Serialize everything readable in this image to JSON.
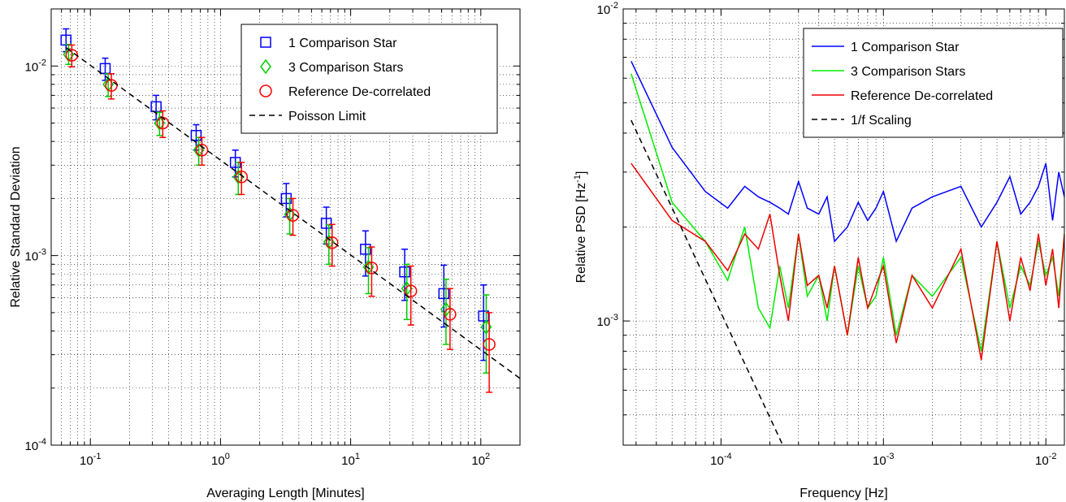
{
  "chart_data": [
    {
      "type": "scatter",
      "xlabel": "Averaging Length [Minutes]",
      "ylabel": "Relative Standard Deviation",
      "xscale": "log",
      "yscale": "log",
      "xlim": [
        0.05,
        200
      ],
      "ylim": [
        0.0001,
        0.02
      ],
      "grid": true,
      "legend_position": "top-right",
      "x_ticks": [
        {
          "label": "10",
          "sup": "-1"
        },
        {
          "label": "10",
          "sup": "0"
        },
        {
          "label": "10",
          "sup": "1"
        },
        {
          "label": "10",
          "sup": "2"
        }
      ],
      "y_ticks": [
        {
          "label": "10",
          "sup": "-4"
        },
        {
          "label": "10",
          "sup": "-3"
        },
        {
          "label": "10",
          "sup": "-2"
        }
      ],
      "series": [
        {
          "name": "1 Comparison Star",
          "color": "#0000ff",
          "marker": "square",
          "x": [
            0.065,
            0.13,
            0.32,
            0.65,
            1.3,
            3.2,
            6.5,
            13,
            26,
            52,
            105
          ],
          "y": [
            0.0137,
            0.0097,
            0.0061,
            0.0043,
            0.0031,
            0.002,
            0.00148,
            0.00108,
            0.00082,
            0.00063,
            0.00048
          ],
          "err_low": [
            0.0119,
            0.0084,
            0.0052,
            0.0036,
            0.0026,
            0.0016,
            0.00115,
            0.00078,
            0.00058,
            0.00042,
            0.00028
          ],
          "err_high": [
            0.0157,
            0.011,
            0.007,
            0.0049,
            0.0036,
            0.0024,
            0.0018,
            0.00135,
            0.00108,
            0.00089,
            0.0007
          ]
        },
        {
          "name": "3 Comparison Stars",
          "color": "#00cc00",
          "marker": "diamond",
          "x": [
            0.068,
            0.137,
            0.34,
            0.68,
            1.37,
            3.4,
            6.8,
            13.7,
            27,
            54,
            110
          ],
          "y": [
            0.0115,
            0.008,
            0.005,
            0.0036,
            0.0026,
            0.00165,
            0.00118,
            0.00087,
            0.00067,
            0.00052,
            0.00042
          ],
          "err_low": [
            0.0102,
            0.0069,
            0.0043,
            0.003,
            0.0021,
            0.0013,
            0.0009,
            0.00063,
            0.00046,
            0.00034,
            0.00024
          ],
          "err_high": [
            0.013,
            0.0091,
            0.0057,
            0.0042,
            0.0031,
            0.002,
            0.00145,
            0.0011,
            0.0009,
            0.00075,
            0.00062
          ]
        },
        {
          "name": "Reference De-correlated",
          "color": "#ff0000",
          "marker": "circle",
          "x": [
            0.072,
            0.145,
            0.36,
            0.72,
            1.45,
            3.6,
            7.2,
            14.5,
            29,
            58,
            116
          ],
          "y": [
            0.0114,
            0.0079,
            0.005,
            0.0036,
            0.0026,
            0.00163,
            0.00117,
            0.00086,
            0.00065,
            0.00049,
            0.00034
          ],
          "err_low": [
            0.0099,
            0.0067,
            0.0042,
            0.003,
            0.0021,
            0.00128,
            0.00088,
            0.00061,
            0.00043,
            0.00032,
            0.00019
          ],
          "err_high": [
            0.0129,
            0.0091,
            0.0058,
            0.0042,
            0.0031,
            0.002,
            0.00146,
            0.00111,
            0.00088,
            0.00067,
            0.0005
          ]
        },
        {
          "name": "Poisson Limit",
          "color": "#000000",
          "marker": "dashed-line",
          "x": [
            0.065,
            200
          ],
          "y": [
            0.0125,
            0.000225
          ]
        }
      ]
    },
    {
      "type": "line",
      "xlabel": "Frequency [Hz]",
      "ylabel": "Relative PSD [Hz",
      "ylabel_sup": "-1",
      "ylabel_tail": "]",
      "xscale": "log",
      "yscale": "log",
      "xlim": [
        2.5e-05,
        0.013
      ],
      "ylim": [
        0.0004,
        0.01
      ],
      "grid": true,
      "legend_position": "top-right",
      "x_ticks": [
        {
          "label": "10",
          "sup": "-4"
        },
        {
          "label": "10",
          "sup": "-3"
        },
        {
          "label": "10",
          "sup": "-2"
        }
      ],
      "y_ticks": [
        {
          "label": "10",
          "sup": "-3"
        },
        {
          "label": "10",
          "sup": "-2"
        }
      ],
      "series": [
        {
          "name": "1 Comparison Star",
          "color": "#0000ff",
          "x": [
            2.8e-05,
            5e-05,
            8e-05,
            0.00011,
            0.00014,
            0.00017,
            0.0002,
            0.00023,
            0.00026,
            0.0003,
            0.00034,
            0.0004,
            0.00045,
            0.0005,
            0.0006,
            0.0007,
            0.0008,
            0.0009,
            0.001,
            0.0012,
            0.0015,
            0.002,
            0.003,
            0.004,
            0.005,
            0.006,
            0.007,
            0.008,
            0.009,
            0.01,
            0.011,
            0.012,
            0.013
          ],
          "y": [
            0.0068,
            0.0036,
            0.0026,
            0.0023,
            0.0027,
            0.0025,
            0.0024,
            0.0023,
            0.0022,
            0.0028,
            0.0023,
            0.0022,
            0.0025,
            0.0018,
            0.002,
            0.0024,
            0.0021,
            0.0023,
            0.0026,
            0.0018,
            0.0023,
            0.0025,
            0.0027,
            0.002,
            0.0024,
            0.0029,
            0.0022,
            0.0024,
            0.0027,
            0.0032,
            0.0021,
            0.003,
            0.0025
          ]
        },
        {
          "name": "3 Comparison Stars",
          "color": "#00ee00",
          "x": [
            2.8e-05,
            5e-05,
            8e-05,
            0.00011,
            0.00014,
            0.00017,
            0.0002,
            0.00023,
            0.00026,
            0.0003,
            0.00034,
            0.0004,
            0.00045,
            0.0005,
            0.0006,
            0.0007,
            0.0008,
            0.0009,
            0.001,
            0.0012,
            0.0015,
            0.002,
            0.003,
            0.004,
            0.005,
            0.006,
            0.007,
            0.008,
            0.009,
            0.01,
            0.011,
            0.012,
            0.013
          ],
          "y": [
            0.0062,
            0.0024,
            0.0018,
            0.00135,
            0.002,
            0.0011,
            0.00095,
            0.0015,
            0.0011,
            0.0019,
            0.0012,
            0.0014,
            0.001,
            0.0015,
            0.0009,
            0.0015,
            0.0011,
            0.0012,
            0.0016,
            0.0009,
            0.0014,
            0.0012,
            0.0016,
            0.0008,
            0.0018,
            0.0011,
            0.0015,
            0.0013,
            0.0018,
            0.0014,
            0.0016,
            0.0012,
            0.0019
          ]
        },
        {
          "name": "Reference De-correlated",
          "color": "#ee0000",
          "x": [
            2.8e-05,
            5e-05,
            8e-05,
            0.00011,
            0.00014,
            0.00017,
            0.0002,
            0.00023,
            0.00026,
            0.0003,
            0.00034,
            0.0004,
            0.00045,
            0.0005,
            0.0006,
            0.0007,
            0.0008,
            0.0009,
            0.001,
            0.0012,
            0.0015,
            0.002,
            0.003,
            0.004,
            0.005,
            0.006,
            0.007,
            0.008,
            0.009,
            0.01,
            0.011,
            0.012,
            0.013
          ],
          "y": [
            0.0032,
            0.0021,
            0.0018,
            0.00145,
            0.0019,
            0.0017,
            0.0022,
            0.0014,
            0.001,
            0.0019,
            0.0013,
            0.0014,
            0.0011,
            0.0015,
            0.0009,
            0.0016,
            0.0011,
            0.0013,
            0.0015,
            0.00085,
            0.0014,
            0.0011,
            0.0017,
            0.00075,
            0.0018,
            0.001,
            0.0016,
            0.00125,
            0.0019,
            0.0013,
            0.0017,
            0.0011,
            0.0019
          ]
        },
        {
          "name": "1/f Scaling",
          "color": "#000000",
          "dashed": true,
          "x": [
            2.8e-05,
            0.00024
          ],
          "y": [
            0.0044,
            0.0004
          ]
        }
      ]
    }
  ]
}
